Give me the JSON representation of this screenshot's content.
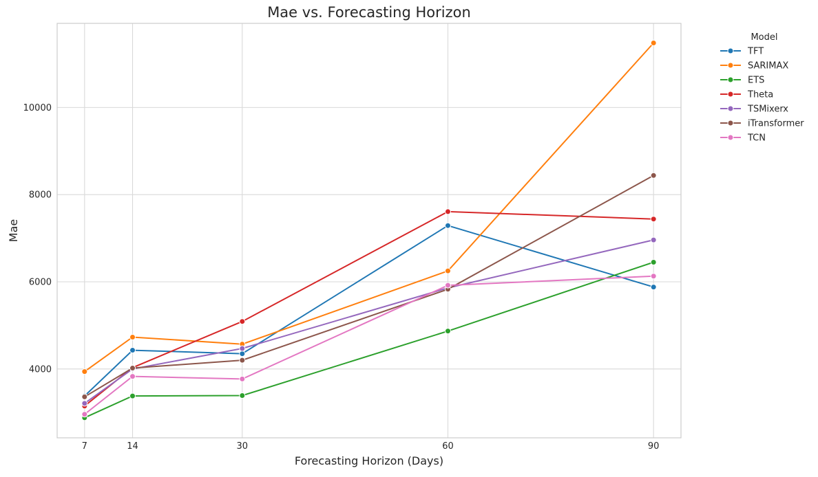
{
  "chart_data": {
    "type": "line",
    "title": "Mae vs. Forecasting Horizon",
    "xlabel": "Forecasting Horizon (Days)",
    "ylabel": "Mae",
    "x": [
      7,
      14,
      30,
      60,
      90
    ],
    "xticks": [
      7,
      14,
      30,
      60,
      90
    ],
    "yticks": [
      4000,
      6000,
      8000,
      10000
    ],
    "xlim": [
      3,
      94
    ],
    "ylim": [
      2420,
      11930
    ],
    "grid": true,
    "legend": {
      "title": "Model",
      "placement": "outside-top-right"
    },
    "series": [
      {
        "name": "TFT",
        "color": "#1f77b4",
        "values": [
          3380,
          4430,
          4350,
          7290,
          5880
        ]
      },
      {
        "name": "SARIMAX",
        "color": "#ff7f0e",
        "values": [
          3940,
          4730,
          4570,
          6250,
          11480
        ]
      },
      {
        "name": "ETS",
        "color": "#2ca02c",
        "values": [
          2880,
          3380,
          3390,
          4870,
          6450
        ]
      },
      {
        "name": "Theta",
        "color": "#d62728",
        "values": [
          3150,
          4030,
          5090,
          7610,
          7440
        ]
      },
      {
        "name": "TSMixerx",
        "color": "#9467bd",
        "values": [
          3210,
          4000,
          4470,
          5860,
          6960
        ]
      },
      {
        "name": "iTransformer",
        "color": "#8c564b",
        "values": [
          3360,
          4020,
          4200,
          5830,
          8440
        ]
      },
      {
        "name": "TCN",
        "color": "#e377c2",
        "values": [
          2960,
          3830,
          3770,
          5920,
          6130
        ]
      }
    ]
  }
}
